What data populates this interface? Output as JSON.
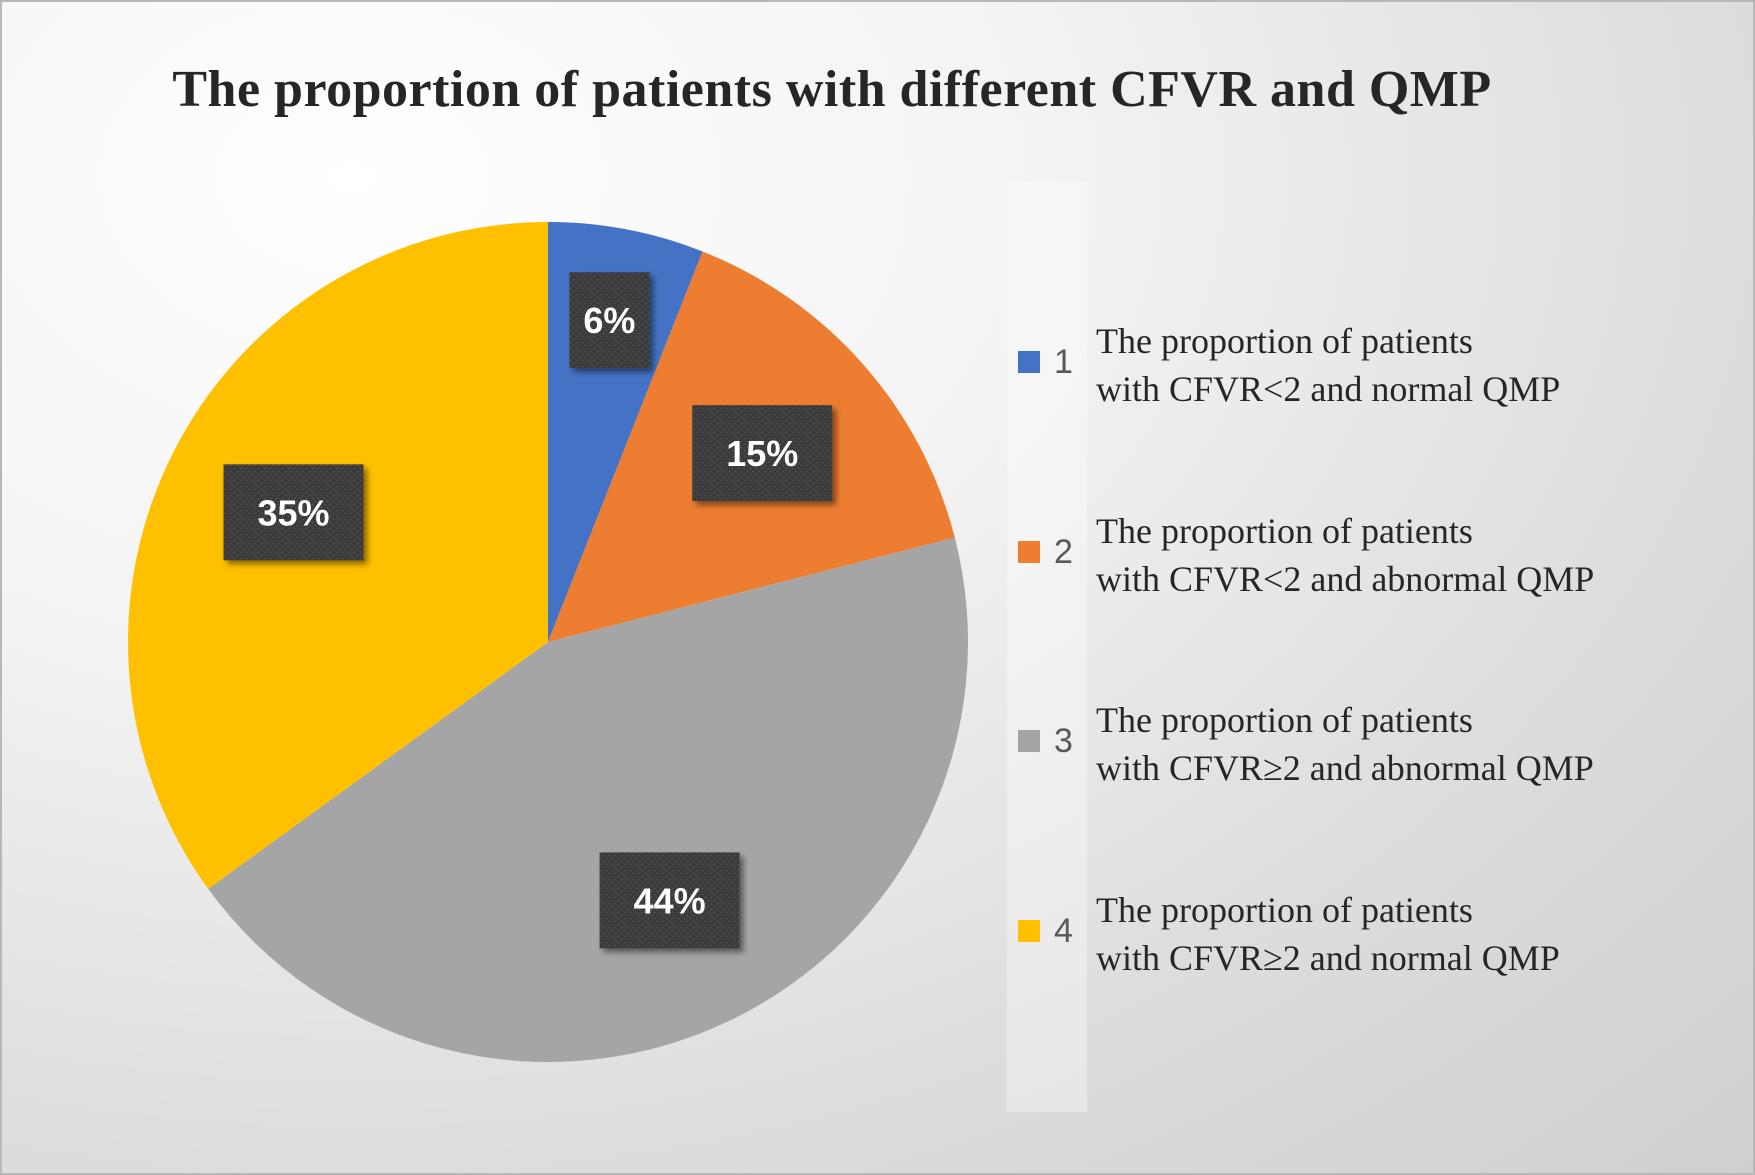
{
  "chart_data": {
    "type": "pie",
    "title": "The proportion of patients with different CFVR and QMP",
    "slices": [
      {
        "id": "1",
        "number": "1",
        "label_line1": "The proportion of patients",
        "label_line2": "with CFVR<2 and normal QMP",
        "value": 6,
        "display": "6%",
        "color": "#4472C4"
      },
      {
        "id": "2",
        "number": "2",
        "label_line1": "The proportion of patients",
        "label_line2": "with CFVR<2 and abnormal QMP",
        "value": 15,
        "display": "15%",
        "color": "#ED7D31"
      },
      {
        "id": "3",
        "number": "3",
        "label_line1": "The proportion of patients",
        "label_line2": "with CFVR≥2 and abnormal QMP",
        "value": 44,
        "display": "44%",
        "color": "#A5A5A5"
      },
      {
        "id": "4",
        "number": "4",
        "label_line1": "The proportion of patients",
        "label_line2": "with CFVR≥2 and normal QMP",
        "value": 35,
        "display": "35%",
        "color": "#FFC000"
      }
    ],
    "legend_position": "right",
    "data_label_style": "dark-box"
  }
}
